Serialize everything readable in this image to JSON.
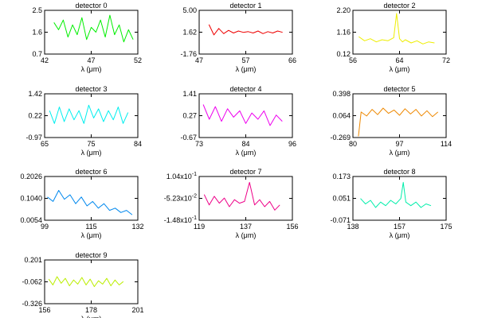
{
  "figure": {
    "background": "#ffffff"
  },
  "chart_data": [
    {
      "type": "line",
      "title": "detector 0",
      "xlabel": "λ (μm)",
      "xlim": [
        42,
        52
      ],
      "ylim": [
        0.7,
        2.5
      ],
      "xticks": [
        "42",
        "47",
        "52"
      ],
      "yticks": [
        "0.7",
        "1.6",
        "2.5"
      ],
      "color": "#00ee00",
      "series": [
        {
          "x": [
            43.0,
            43.5,
            44.0,
            44.5,
            45.0,
            45.5,
            46.0,
            46.5,
            47.0,
            47.5,
            48.0,
            48.5,
            49.0,
            49.5,
            50.0,
            50.5,
            51.0,
            51.5
          ],
          "y": [
            2.0,
            1.7,
            2.1,
            1.4,
            1.9,
            1.5,
            2.2,
            1.3,
            1.8,
            1.6,
            2.1,
            1.4,
            2.3,
            1.5,
            1.9,
            1.2,
            1.7,
            1.3
          ]
        }
      ]
    },
    {
      "type": "line",
      "title": "detector 1",
      "xlabel": "λ (μm)",
      "xlim": [
        47,
        66
      ],
      "ylim": [
        -1.76,
        5.0
      ],
      "xticks": [
        "47",
        "57",
        "66"
      ],
      "yticks": [
        "-1.76",
        "1.62",
        "5.00"
      ],
      "color": "#ee0000",
      "series": [
        {
          "x": [
            49.0,
            50.0,
            51.0,
            52.0,
            53.0,
            54.0,
            55.0,
            56.0,
            57.0,
            58.0,
            59.0,
            60.0,
            61.0,
            62.0,
            63.0,
            64.0
          ],
          "y": [
            2.8,
            1.2,
            2.2,
            1.4,
            1.9,
            1.5,
            1.8,
            1.6,
            1.7,
            1.5,
            1.8,
            1.4,
            1.7,
            1.5,
            1.8,
            1.6
          ]
        }
      ]
    },
    {
      "type": "line",
      "title": "detector 2",
      "xlabel": "λ (μm)",
      "xlim": [
        56,
        72
      ],
      "ylim": [
        0.12,
        2.2
      ],
      "xticks": [
        "56",
        "64",
        "72"
      ],
      "yticks": [
        "0.12",
        "1.16",
        "2.20"
      ],
      "color": "#eeee00",
      "series": [
        {
          "x": [
            57.0,
            58.0,
            59.0,
            60.0,
            61.0,
            62.0,
            63.0,
            63.5,
            64.0,
            64.5,
            65.0,
            66.0,
            67.0,
            68.0,
            69.0,
            70.0
          ],
          "y": [
            0.95,
            0.75,
            0.85,
            0.7,
            0.8,
            0.75,
            0.9,
            2.05,
            0.85,
            0.7,
            0.8,
            0.65,
            0.75,
            0.6,
            0.7,
            0.65
          ]
        }
      ]
    },
    {
      "type": "line",
      "title": "detector 3",
      "xlabel": "λ (μm)",
      "xlim": [
        65,
        84
      ],
      "ylim": [
        -0.97,
        1.42
      ],
      "xticks": [
        "65",
        "75",
        "84"
      ],
      "yticks": [
        "-0.97",
        "0.22",
        "1.42"
      ],
      "color": "#00eeee",
      "series": [
        {
          "x": [
            66.0,
            67.0,
            68.0,
            69.0,
            70.0,
            71.0,
            72.0,
            73.0,
            74.0,
            75.0,
            76.0,
            77.0,
            78.0,
            79.0,
            80.0,
            81.0,
            82.0
          ],
          "y": [
            0.5,
            -0.2,
            0.7,
            -0.1,
            0.6,
            0.0,
            0.5,
            -0.2,
            0.8,
            0.1,
            0.6,
            -0.1,
            0.5,
            0.0,
            0.7,
            -0.2,
            0.4
          ]
        }
      ]
    },
    {
      "type": "line",
      "title": "detector 4",
      "xlabel": "λ (μm)",
      "xlim": [
        73,
        96
      ],
      "ylim": [
        -0.67,
        1.41
      ],
      "xticks": [
        "73",
        "84",
        "96"
      ],
      "yticks": [
        "-0.67",
        "0.27",
        "1.41"
      ],
      "color": "#ee00ee",
      "series": [
        {
          "x": [
            74.0,
            75.5,
            77.0,
            78.5,
            80.0,
            81.5,
            83.0,
            84.5,
            86.0,
            87.5,
            89.0,
            90.5,
            92.0,
            93.5
          ],
          "y": [
            0.9,
            0.2,
            0.8,
            0.1,
            0.7,
            0.3,
            0.6,
            0.0,
            0.5,
            0.2,
            0.6,
            -0.1,
            0.4,
            0.1
          ]
        }
      ]
    },
    {
      "type": "line",
      "title": "detector 5",
      "xlabel": "λ (μm)",
      "xlim": [
        80,
        114
      ],
      "ylim": [
        -0.269,
        0.398
      ],
      "xticks": [
        "80",
        "97",
        "114"
      ],
      "yticks": [
        "-0.269",
        "0.064",
        "0.398"
      ],
      "color": "#ee8800",
      "series": [
        {
          "x": [
            82.0,
            83.0,
            85.0,
            87.0,
            89.0,
            91.0,
            93.0,
            95.0,
            97.0,
            99.0,
            101.0,
            103.0,
            105.0,
            107.0,
            109.0,
            111.0
          ],
          "y": [
            -0.25,
            0.12,
            0.06,
            0.16,
            0.08,
            0.18,
            0.1,
            0.15,
            0.07,
            0.17,
            0.09,
            0.16,
            0.06,
            0.14,
            0.05,
            0.12
          ]
        }
      ]
    },
    {
      "type": "line",
      "title": "detector 6",
      "xlabel": "λ (μm)",
      "xlim": [
        99,
        132
      ],
      "ylim": [
        0.0054,
        0.2026
      ],
      "xticks": [
        "99",
        "115",
        "132"
      ],
      "yticks": [
        "0.0054",
        "0.1040",
        "0.2026"
      ],
      "color": "#0088ee",
      "series": [
        {
          "x": [
            100.0,
            102.0,
            104.0,
            106.0,
            108.0,
            110.0,
            112.0,
            114.0,
            116.0,
            118.0,
            120.0,
            122.0,
            124.0,
            126.0,
            128.0,
            130.0
          ],
          "y": [
            0.11,
            0.09,
            0.14,
            0.1,
            0.12,
            0.08,
            0.11,
            0.07,
            0.09,
            0.06,
            0.08,
            0.05,
            0.06,
            0.04,
            0.05,
            0.03
          ]
        }
      ]
    },
    {
      "type": "line",
      "title": "detector 7",
      "xlabel": "λ (μm)",
      "xlim": [
        119,
        156
      ],
      "ylim": [
        -0.148,
        0.104
      ],
      "xticks": [
        "119",
        "137",
        "156"
      ],
      "yticks": [
        "-1.48x10^-1",
        "-5.23x10^-2",
        "1.04x10^-1"
      ],
      "color": "#ee0088",
      "series": [
        {
          "x": [
            121.0,
            123.0,
            125.0,
            127.0,
            129.0,
            131.0,
            133.0,
            135.0,
            137.0,
            139.0,
            141.0,
            143.0,
            145.0,
            147.0,
            149.0,
            151.0
          ],
          "y": [
            0.0,
            -0.06,
            -0.01,
            -0.05,
            -0.02,
            -0.07,
            -0.03,
            -0.05,
            -0.04,
            0.07,
            -0.06,
            -0.03,
            -0.07,
            -0.04,
            -0.09,
            -0.06
          ]
        }
      ]
    },
    {
      "type": "line",
      "title": "detector 8",
      "xlabel": "λ (μm)",
      "xlim": [
        138,
        175
      ],
      "ylim": [
        -0.071,
        0.173
      ],
      "xticks": [
        "138",
        "157",
        "175"
      ],
      "yticks": [
        "-0.071",
        "0.051",
        "0.173"
      ],
      "color": "#00eeaa",
      "series": [
        {
          "x": [
            141.0,
            143.0,
            145.0,
            147.0,
            149.0,
            151.0,
            153.0,
            155.0,
            157.0,
            158.0,
            159.0,
            161.0,
            163.0,
            165.0,
            167.0,
            169.0
          ],
          "y": [
            0.05,
            0.02,
            0.04,
            0.0,
            0.03,
            0.01,
            0.04,
            0.02,
            0.05,
            0.14,
            0.03,
            0.01,
            0.03,
            0.0,
            0.02,
            0.01
          ]
        }
      ]
    },
    {
      "type": "line",
      "title": "detector 9",
      "xlabel": "λ (μm)",
      "xlim": [
        156,
        201
      ],
      "ylim": [
        -0.326,
        0.201
      ],
      "xticks": [
        "156",
        "178",
        "201"
      ],
      "yticks": [
        "-0.326",
        "-0.062",
        "0.201"
      ],
      "color": "#bbee00",
      "series": [
        {
          "x": [
            158.0,
            160.0,
            162.0,
            164.0,
            166.0,
            168.0,
            170.0,
            172.0,
            174.0,
            176.0,
            178.0,
            180.0,
            182.0,
            184.0,
            186.0,
            188.0,
            190.0,
            192.0,
            194.0
          ],
          "y": [
            -0.03,
            -0.1,
            0.0,
            -0.08,
            -0.02,
            -0.11,
            -0.04,
            -0.09,
            -0.01,
            -0.1,
            -0.03,
            -0.12,
            -0.05,
            -0.09,
            -0.02,
            -0.11,
            -0.04,
            -0.1,
            -0.06
          ]
        }
      ]
    }
  ]
}
